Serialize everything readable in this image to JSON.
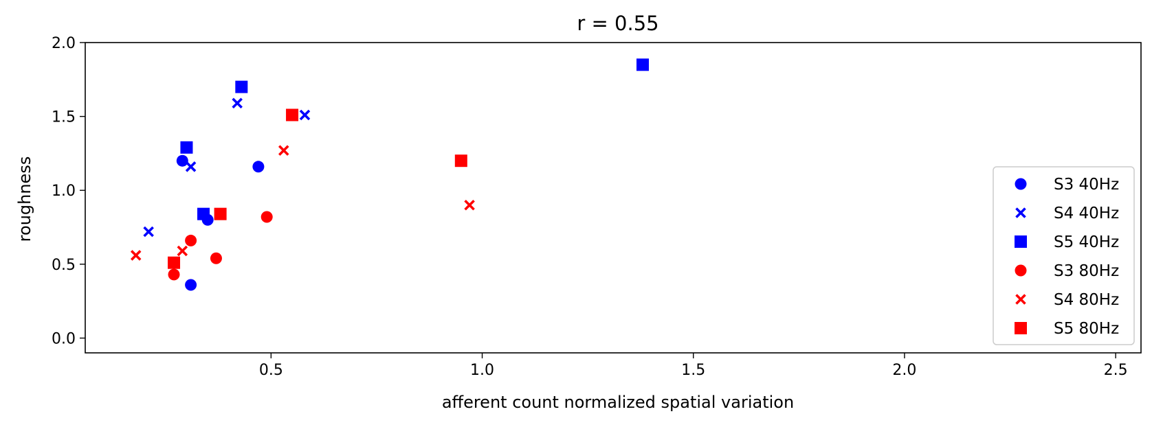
{
  "chart_data": {
    "type": "scatter",
    "title": "r = 0.55",
    "xlabel": "afferent count normalized spatial variation",
    "ylabel": "roughness",
    "xlim": [
      0.06,
      2.56
    ],
    "ylim": [
      -0.1,
      2.0
    ],
    "xticks": [
      0.5,
      1.0,
      1.5,
      2.0,
      2.5
    ],
    "xtick_labels": [
      "0.5",
      "1.0",
      "1.5",
      "2.0",
      "2.5"
    ],
    "yticks": [
      0.0,
      0.5,
      1.0,
      1.5,
      2.0
    ],
    "ytick_labels": [
      "0.0",
      "0.5",
      "1.0",
      "1.5",
      "2.0"
    ],
    "grid": false,
    "legend_position": "lower-right",
    "series": [
      {
        "name": "S3 40Hz",
        "marker": "circle",
        "color": "#0000ff",
        "points": [
          [
            0.29,
            1.2
          ],
          [
            0.47,
            1.16
          ],
          [
            0.35,
            0.8
          ],
          [
            0.31,
            0.36
          ]
        ]
      },
      {
        "name": "S4 40Hz",
        "marker": "x",
        "color": "#0000ff",
        "points": [
          [
            0.42,
            1.59
          ],
          [
            0.58,
            1.51
          ],
          [
            0.31,
            1.16
          ],
          [
            0.21,
            0.72
          ]
        ]
      },
      {
        "name": "S5 40Hz",
        "marker": "square",
        "color": "#0000ff",
        "points": [
          [
            1.38,
            1.85
          ],
          [
            0.43,
            1.7
          ],
          [
            0.3,
            1.29
          ],
          [
            0.34,
            0.84
          ]
        ]
      },
      {
        "name": "S3 80Hz",
        "marker": "circle",
        "color": "#ff0000",
        "points": [
          [
            0.49,
            0.82
          ],
          [
            0.31,
            0.66
          ],
          [
            0.37,
            0.54
          ],
          [
            0.27,
            0.43
          ]
        ]
      },
      {
        "name": "S4 80Hz",
        "marker": "x",
        "color": "#ff0000",
        "points": [
          [
            0.53,
            1.27
          ],
          [
            0.97,
            0.9
          ],
          [
            0.29,
            0.59
          ],
          [
            0.18,
            0.56
          ]
        ]
      },
      {
        "name": "S5 80Hz",
        "marker": "square",
        "color": "#ff0000",
        "points": [
          [
            0.55,
            1.51
          ],
          [
            0.95,
            1.2
          ],
          [
            0.38,
            0.84
          ],
          [
            0.27,
            0.51
          ]
        ]
      }
    ]
  }
}
